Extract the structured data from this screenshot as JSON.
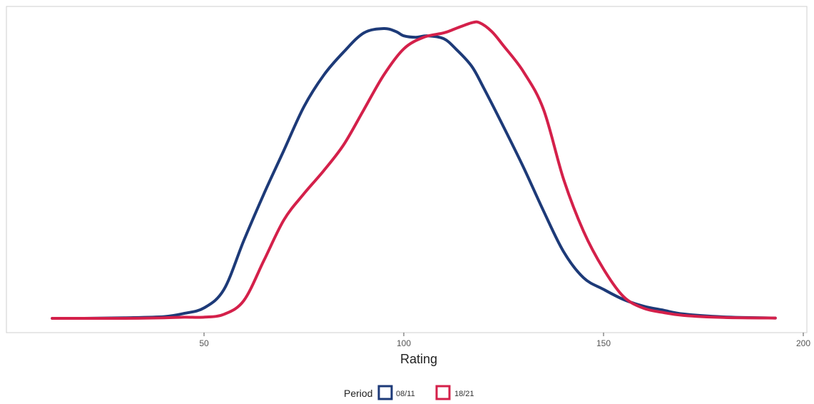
{
  "chart_data": {
    "type": "line",
    "title": "",
    "xlabel": "Rating",
    "ylabel": "",
    "xlim": [
      10,
      200
    ],
    "ylim": [
      0,
      1
    ],
    "x_ticks": [
      50,
      100,
      150,
      200
    ],
    "grid": false,
    "legend": {
      "position": "bottom",
      "title": "Period",
      "entries": [
        "08/11",
        "18/21"
      ]
    },
    "series": [
      {
        "name": "08/11",
        "color": "#1d3a78",
        "x": [
          12,
          20,
          30,
          40,
          45,
          50,
          55,
          60,
          65,
          70,
          75,
          80,
          85,
          90,
          95,
          98,
          100,
          103,
          106,
          110,
          113,
          117,
          120,
          125,
          130,
          135,
          140,
          145,
          150,
          155,
          160,
          165,
          170,
          180,
          193
        ],
        "y": [
          0.0,
          0.0,
          0.002,
          0.006,
          0.017,
          0.036,
          0.1,
          0.27,
          0.43,
          0.58,
          0.73,
          0.84,
          0.92,
          0.985,
          1.0,
          0.99,
          0.975,
          0.97,
          0.975,
          0.965,
          0.93,
          0.87,
          0.795,
          0.66,
          0.52,
          0.37,
          0.23,
          0.14,
          0.1,
          0.065,
          0.042,
          0.028,
          0.015,
          0.005,
          0.001
        ]
      },
      {
        "name": "18/21",
        "color": "#d4204a",
        "x": [
          12,
          20,
          30,
          40,
          45,
          50,
          55,
          60,
          65,
          70,
          75,
          80,
          85,
          90,
          95,
          100,
          105,
          110,
          113,
          117,
          119,
          122,
          125,
          130,
          135,
          140,
          145,
          150,
          155,
          160,
          165,
          170,
          180,
          193
        ],
        "y": [
          0.0,
          0.0,
          0.0,
          0.002,
          0.004,
          0.004,
          0.014,
          0.062,
          0.2,
          0.34,
          0.43,
          0.51,
          0.6,
          0.72,
          0.84,
          0.93,
          0.97,
          0.985,
          1.0,
          1.02,
          1.02,
          0.99,
          0.94,
          0.85,
          0.72,
          0.48,
          0.3,
          0.17,
          0.075,
          0.035,
          0.02,
          0.01,
          0.003,
          0.001
        ]
      }
    ]
  }
}
